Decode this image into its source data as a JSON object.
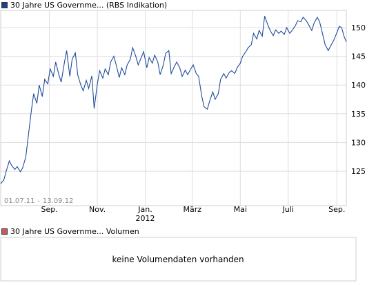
{
  "colors": {
    "series": "#1f4c9b",
    "price_swatch": "#1f3f93",
    "volume_swatch": "#c85a5a",
    "grid": "#dddddd",
    "frame": "#cfcfcf",
    "axis_text": "#000000",
    "range_text": "#8a8a8a"
  },
  "legend": {
    "price_series": "30 Jahre US Governme... (RBS Indikation)",
    "volume_series": "30 Jahre US Governme... Volumen"
  },
  "date_range": "01.07.11 – 13.09.12",
  "no_volume_message": "keine Volumendaten vorhanden",
  "chart_data": {
    "type": "line",
    "title": "",
    "xlabel": "",
    "ylabel": "",
    "x_range": [
      "2011-07-01",
      "2012-09-13"
    ],
    "ylim": [
      119,
      153
    ],
    "y_ticks": [
      125,
      130,
      135,
      140,
      145,
      150
    ],
    "y_tick_labels": [
      "125",
      "130",
      "135",
      "140",
      "145",
      "150"
    ],
    "x_ticks": [
      {
        "date": "2011-09-01",
        "label": "Sep."
      },
      {
        "date": "2011-11-01",
        "label": "Nov."
      },
      {
        "date": "2012-01-01",
        "label": "Jan.",
        "sublabel": "2012"
      },
      {
        "date": "2012-03-01",
        "label": "März"
      },
      {
        "date": "2012-05-01",
        "label": "Mai"
      },
      {
        "date": "2012-07-01",
        "label": "Juli"
      },
      {
        "date": "2012-09-01",
        "label": "Sep."
      }
    ],
    "grid": true,
    "series": [
      {
        "name": "30 Jahre US Governme... (RBS Indikation)",
        "points": [
          [
            "2011-07-01",
            122.8
          ],
          [
            "2011-07-05",
            123.5
          ],
          [
            "2011-07-08",
            125.0
          ],
          [
            "2011-07-12",
            126.8
          ],
          [
            "2011-07-15",
            126.0
          ],
          [
            "2011-07-19",
            125.3
          ],
          [
            "2011-07-22",
            125.8
          ],
          [
            "2011-07-26",
            124.9
          ],
          [
            "2011-07-29",
            125.6
          ],
          [
            "2011-08-02",
            127.5
          ],
          [
            "2011-08-05",
            131.0
          ],
          [
            "2011-08-09",
            135.5
          ],
          [
            "2011-08-12",
            138.5
          ],
          [
            "2011-08-16",
            136.8
          ],
          [
            "2011-08-19",
            140.0
          ],
          [
            "2011-08-23",
            138.0
          ],
          [
            "2011-08-26",
            141.0
          ],
          [
            "2011-08-30",
            140.2
          ],
          [
            "2011-09-02",
            142.8
          ],
          [
            "2011-09-06",
            141.5
          ],
          [
            "2011-09-09",
            144.0
          ],
          [
            "2011-09-13",
            141.8
          ],
          [
            "2011-09-16",
            140.5
          ],
          [
            "2011-09-20",
            143.8
          ],
          [
            "2011-09-23",
            146.0
          ],
          [
            "2011-09-27",
            141.5
          ],
          [
            "2011-09-30",
            144.5
          ],
          [
            "2011-10-04",
            145.6
          ],
          [
            "2011-10-07",
            141.8
          ],
          [
            "2011-10-11",
            140.0
          ],
          [
            "2011-10-14",
            139.0
          ],
          [
            "2011-10-18",
            140.8
          ],
          [
            "2011-10-21",
            139.4
          ],
          [
            "2011-10-25",
            141.6
          ],
          [
            "2011-10-28",
            135.9
          ],
          [
            "2011-11-01",
            140.2
          ],
          [
            "2011-11-04",
            142.5
          ],
          [
            "2011-11-08",
            141.2
          ],
          [
            "2011-11-11",
            142.8
          ],
          [
            "2011-11-15",
            141.8
          ],
          [
            "2011-11-18",
            144.0
          ],
          [
            "2011-11-22",
            145.0
          ],
          [
            "2011-11-25",
            143.5
          ],
          [
            "2011-11-29",
            141.3
          ],
          [
            "2011-12-02",
            143.0
          ],
          [
            "2011-12-06",
            141.8
          ],
          [
            "2011-12-09",
            143.5
          ],
          [
            "2011-12-13",
            144.5
          ],
          [
            "2011-12-16",
            146.5
          ],
          [
            "2011-12-20",
            145.0
          ],
          [
            "2011-12-23",
            143.5
          ],
          [
            "2011-12-27",
            144.8
          ],
          [
            "2011-12-30",
            145.8
          ],
          [
            "2012-01-03",
            143.0
          ],
          [
            "2012-01-06",
            144.8
          ],
          [
            "2012-01-10",
            143.8
          ],
          [
            "2012-01-13",
            145.2
          ],
          [
            "2012-01-17",
            144.0
          ],
          [
            "2012-01-20",
            141.8
          ],
          [
            "2012-01-24",
            143.5
          ],
          [
            "2012-01-27",
            145.5
          ],
          [
            "2012-01-31",
            146.0
          ],
          [
            "2012-02-03",
            142.0
          ],
          [
            "2012-02-07",
            143.2
          ],
          [
            "2012-02-10",
            144.0
          ],
          [
            "2012-02-14",
            143.0
          ],
          [
            "2012-02-17",
            141.5
          ],
          [
            "2012-02-21",
            142.6
          ],
          [
            "2012-02-24",
            141.8
          ],
          [
            "2012-02-28",
            142.8
          ],
          [
            "2012-03-02",
            143.5
          ],
          [
            "2012-03-06",
            142.0
          ],
          [
            "2012-03-09",
            141.5
          ],
          [
            "2012-03-13",
            138.0
          ],
          [
            "2012-03-16",
            136.2
          ],
          [
            "2012-03-20",
            135.8
          ],
          [
            "2012-03-23",
            137.2
          ],
          [
            "2012-03-27",
            138.8
          ],
          [
            "2012-03-30",
            137.5
          ],
          [
            "2012-04-03",
            138.5
          ],
          [
            "2012-04-06",
            141.0
          ],
          [
            "2012-04-10",
            142.0
          ],
          [
            "2012-04-13",
            141.2
          ],
          [
            "2012-04-17",
            142.2
          ],
          [
            "2012-04-20",
            142.5
          ],
          [
            "2012-04-24",
            142.0
          ],
          [
            "2012-04-27",
            143.0
          ],
          [
            "2012-05-01",
            143.8
          ],
          [
            "2012-05-04",
            145.0
          ],
          [
            "2012-05-08",
            145.8
          ],
          [
            "2012-05-11",
            146.5
          ],
          [
            "2012-05-15",
            147.0
          ],
          [
            "2012-05-18",
            149.0
          ],
          [
            "2012-05-22",
            148.0
          ],
          [
            "2012-05-25",
            149.5
          ],
          [
            "2012-05-29",
            148.5
          ],
          [
            "2012-06-01",
            152.0
          ],
          [
            "2012-06-05",
            150.5
          ],
          [
            "2012-06-08",
            149.5
          ],
          [
            "2012-06-12",
            148.6
          ],
          [
            "2012-06-15",
            149.6
          ],
          [
            "2012-06-19",
            149.0
          ],
          [
            "2012-06-22",
            149.4
          ],
          [
            "2012-06-26",
            148.8
          ],
          [
            "2012-06-29",
            150.0
          ],
          [
            "2012-07-03",
            149.0
          ],
          [
            "2012-07-06",
            149.5
          ],
          [
            "2012-07-10",
            150.3
          ],
          [
            "2012-07-13",
            151.2
          ],
          [
            "2012-07-17",
            151.0
          ],
          [
            "2012-07-20",
            151.8
          ],
          [
            "2012-07-24",
            151.2
          ],
          [
            "2012-07-27",
            150.5
          ],
          [
            "2012-07-31",
            149.5
          ],
          [
            "2012-08-03",
            150.8
          ],
          [
            "2012-08-07",
            151.8
          ],
          [
            "2012-08-10",
            151.0
          ],
          [
            "2012-08-14",
            148.8
          ],
          [
            "2012-08-17",
            147.0
          ],
          [
            "2012-08-21",
            146.0
          ],
          [
            "2012-08-24",
            146.8
          ],
          [
            "2012-08-28",
            147.8
          ],
          [
            "2012-08-31",
            148.8
          ],
          [
            "2012-09-04",
            150.2
          ],
          [
            "2012-09-07",
            150.0
          ],
          [
            "2012-09-10",
            148.5
          ],
          [
            "2012-09-13",
            147.5
          ]
        ]
      }
    ]
  }
}
